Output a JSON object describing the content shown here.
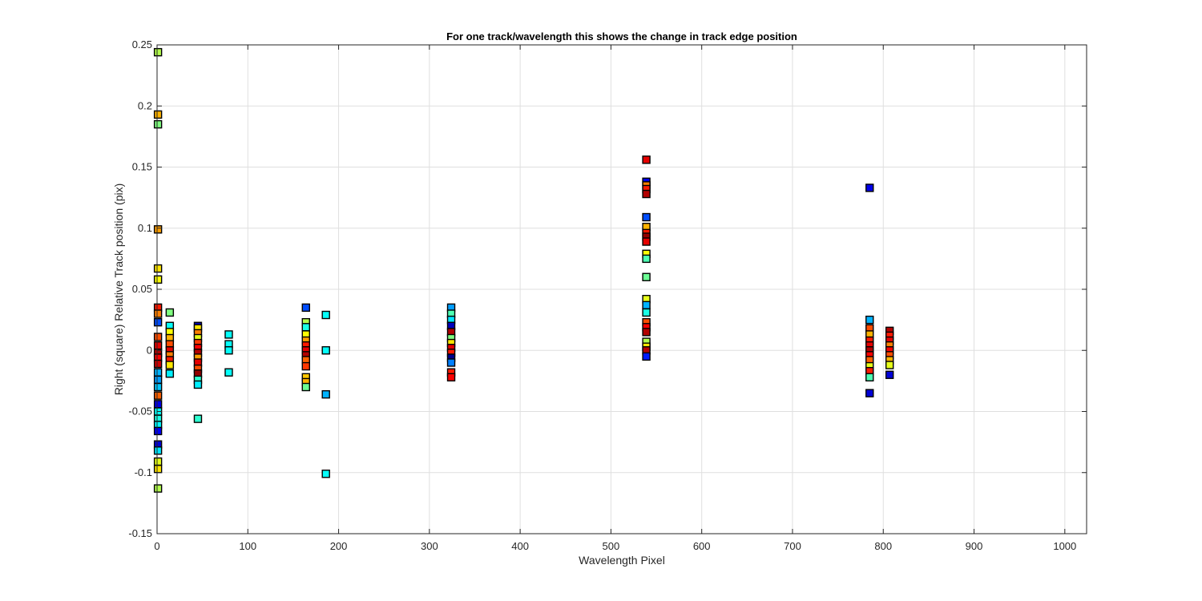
{
  "chart_data": {
    "type": "scatter",
    "title": "For one track/wavelength this shows the change in track edge position",
    "xlabel": "Wavelength Pixel",
    "ylabel": "Right (square) Relative Track position (pix)",
    "xlim": [
      0,
      1024
    ],
    "ylim": [
      -0.15,
      0.25
    ],
    "xticks": [
      0,
      100,
      200,
      300,
      400,
      500,
      600,
      700,
      800,
      900,
      1000
    ],
    "yticks": [
      -0.15,
      -0.1,
      -0.05,
      0,
      0.05,
      0.1,
      0.15,
      0.2,
      0.25
    ],
    "ytick_labels": [
      "-0.15",
      "-0.1",
      "-0.05",
      "0",
      "0.05",
      "0.1",
      "0.15",
      "0.2",
      "0.25"
    ],
    "grid": true,
    "marker": "square",
    "colormap": "jet",
    "colors": {
      "jet": [
        "#00008f",
        "#0000ff",
        "#0080ff",
        "#00ffff",
        "#80ff80",
        "#ffff00",
        "#ff8000",
        "#ff0000",
        "#800000"
      ],
      "axis": "#262626",
      "grid": "#dfdfdf",
      "marker_edge": "#000000"
    },
    "points": [
      {
        "x": 1,
        "y": 0.244,
        "c": 0.55
      },
      {
        "x": 1,
        "y": 0.193,
        "c": 0.7
      },
      {
        "x": 1,
        "y": 0.185,
        "c": 0.5
      },
      {
        "x": 1,
        "y": 0.099,
        "c": 0.72
      },
      {
        "x": 1,
        "y": 0.067,
        "c": 0.65
      },
      {
        "x": 1,
        "y": 0.058,
        "c": 0.62
      },
      {
        "x": 1,
        "y": 0.035,
        "c": 0.85
      },
      {
        "x": 1,
        "y": 0.03,
        "c": 0.75
      },
      {
        "x": 1,
        "y": 0.023,
        "c": 0.2
      },
      {
        "x": 1,
        "y": 0.011,
        "c": 0.8
      },
      {
        "x": 1,
        "y": 0.004,
        "c": 0.9
      },
      {
        "x": 1,
        "y": -0.002,
        "c": 0.95
      },
      {
        "x": 1,
        "y": -0.006,
        "c": 0.88
      },
      {
        "x": 1,
        "y": -0.011,
        "c": 0.92
      },
      {
        "x": 1,
        "y": -0.018,
        "c": 0.3
      },
      {
        "x": 1,
        "y": -0.024,
        "c": 0.28
      },
      {
        "x": 1,
        "y": -0.03,
        "c": 0.32
      },
      {
        "x": 1,
        "y": -0.037,
        "c": 0.78
      },
      {
        "x": 1,
        "y": -0.044,
        "c": 0.1
      },
      {
        "x": 1,
        "y": -0.05,
        "c": 0.38
      },
      {
        "x": 1,
        "y": -0.056,
        "c": 0.4
      },
      {
        "x": 1,
        "y": -0.061,
        "c": 0.37
      },
      {
        "x": 1,
        "y": -0.066,
        "c": 0.12
      },
      {
        "x": 1,
        "y": -0.077,
        "c": 0.08
      },
      {
        "x": 1,
        "y": -0.082,
        "c": 0.35
      },
      {
        "x": 1,
        "y": -0.091,
        "c": 0.6
      },
      {
        "x": 1,
        "y": -0.097,
        "c": 0.65
      },
      {
        "x": 1,
        "y": -0.113,
        "c": 0.55
      },
      {
        "x": 14,
        "y": 0.031,
        "c": 0.5
      },
      {
        "x": 14,
        "y": 0.02,
        "c": 0.38
      },
      {
        "x": 14,
        "y": 0.015,
        "c": 0.62
      },
      {
        "x": 14,
        "y": 0.01,
        "c": 0.7
      },
      {
        "x": 14,
        "y": 0.005,
        "c": 0.8
      },
      {
        "x": 14,
        "y": 0.0,
        "c": 0.9
      },
      {
        "x": 14,
        "y": -0.004,
        "c": 0.75
      },
      {
        "x": 14,
        "y": -0.008,
        "c": 0.85
      },
      {
        "x": 14,
        "y": -0.012,
        "c": 0.65
      },
      {
        "x": 14,
        "y": -0.019,
        "c": 0.36
      },
      {
        "x": 45,
        "y": 0.02,
        "c": 0.05
      },
      {
        "x": 45,
        "y": 0.018,
        "c": 0.65
      },
      {
        "x": 45,
        "y": 0.014,
        "c": 0.75
      },
      {
        "x": 45,
        "y": 0.01,
        "c": 0.6
      },
      {
        "x": 45,
        "y": 0.006,
        "c": 0.82
      },
      {
        "x": 45,
        "y": 0.002,
        "c": 0.88
      },
      {
        "x": 45,
        "y": -0.002,
        "c": 0.95
      },
      {
        "x": 45,
        "y": -0.006,
        "c": 0.72
      },
      {
        "x": 45,
        "y": -0.01,
        "c": 0.9
      },
      {
        "x": 45,
        "y": -0.015,
        "c": 0.8
      },
      {
        "x": 45,
        "y": -0.019,
        "c": 0.98
      },
      {
        "x": 45,
        "y": -0.024,
        "c": 0.42
      },
      {
        "x": 45,
        "y": -0.028,
        "c": 0.36
      },
      {
        "x": 45,
        "y": -0.056,
        "c": 0.42
      },
      {
        "x": 79,
        "y": 0.013,
        "c": 0.38
      },
      {
        "x": 79,
        "y": 0.005,
        "c": 0.38
      },
      {
        "x": 79,
        "y": 0.0,
        "c": 0.38
      },
      {
        "x": 79,
        "y": -0.018,
        "c": 0.38
      },
      {
        "x": 164,
        "y": 0.035,
        "c": 0.2
      },
      {
        "x": 164,
        "y": 0.023,
        "c": 0.55
      },
      {
        "x": 164,
        "y": 0.019,
        "c": 0.4
      },
      {
        "x": 164,
        "y": 0.013,
        "c": 0.62
      },
      {
        "x": 164,
        "y": 0.008,
        "c": 0.72
      },
      {
        "x": 164,
        "y": 0.004,
        "c": 0.85
      },
      {
        "x": 164,
        "y": 0.0,
        "c": 0.9
      },
      {
        "x": 164,
        "y": -0.004,
        "c": 0.95
      },
      {
        "x": 164,
        "y": -0.008,
        "c": 0.78
      },
      {
        "x": 164,
        "y": -0.013,
        "c": 0.82
      },
      {
        "x": 164,
        "y": -0.022,
        "c": 0.68
      },
      {
        "x": 164,
        "y": -0.026,
        "c": 0.7
      },
      {
        "x": 164,
        "y": -0.03,
        "c": 0.48
      },
      {
        "x": 186,
        "y": 0.029,
        "c": 0.38
      },
      {
        "x": 186,
        "y": 0.0,
        "c": 0.38
      },
      {
        "x": 186,
        "y": -0.036,
        "c": 0.3
      },
      {
        "x": 186,
        "y": -0.101,
        "c": 0.38
      },
      {
        "x": 324,
        "y": 0.035,
        "c": 0.28
      },
      {
        "x": 324,
        "y": 0.03,
        "c": 0.45
      },
      {
        "x": 324,
        "y": 0.025,
        "c": 0.35
      },
      {
        "x": 324,
        "y": 0.02,
        "c": 0.05
      },
      {
        "x": 324,
        "y": 0.015,
        "c": 0.95
      },
      {
        "x": 324,
        "y": 0.01,
        "c": 0.5
      },
      {
        "x": 324,
        "y": 0.006,
        "c": 0.65
      },
      {
        "x": 324,
        "y": 0.002,
        "c": 0.9
      },
      {
        "x": 324,
        "y": -0.002,
        "c": 0.85
      },
      {
        "x": 324,
        "y": -0.006,
        "c": 0.0
      },
      {
        "x": 324,
        "y": -0.01,
        "c": 0.25
      },
      {
        "x": 324,
        "y": -0.018,
        "c": 0.85
      },
      {
        "x": 324,
        "y": -0.022,
        "c": 0.88
      },
      {
        "x": 539,
        "y": 0.156,
        "c": 0.9
      },
      {
        "x": 539,
        "y": 0.138,
        "c": 0.1
      },
      {
        "x": 539,
        "y": 0.135,
        "c": 0.75
      },
      {
        "x": 539,
        "y": 0.132,
        "c": 0.85
      },
      {
        "x": 539,
        "y": 0.128,
        "c": 0.95
      },
      {
        "x": 539,
        "y": 0.109,
        "c": 0.2
      },
      {
        "x": 539,
        "y": 0.101,
        "c": 0.7
      },
      {
        "x": 539,
        "y": 0.096,
        "c": 0.85
      },
      {
        "x": 539,
        "y": 0.093,
        "c": 0.98
      },
      {
        "x": 539,
        "y": 0.089,
        "c": 0.9
      },
      {
        "x": 539,
        "y": 0.079,
        "c": 0.62
      },
      {
        "x": 539,
        "y": 0.075,
        "c": 0.45
      },
      {
        "x": 539,
        "y": 0.06,
        "c": 0.48
      },
      {
        "x": 539,
        "y": 0.042,
        "c": 0.6
      },
      {
        "x": 539,
        "y": 0.037,
        "c": 0.3
      },
      {
        "x": 539,
        "y": 0.031,
        "c": 0.4
      },
      {
        "x": 539,
        "y": 0.023,
        "c": 0.8
      },
      {
        "x": 539,
        "y": 0.019,
        "c": 0.88
      },
      {
        "x": 539,
        "y": 0.015,
        "c": 0.95
      },
      {
        "x": 539,
        "y": 0.007,
        "c": 0.55
      },
      {
        "x": 539,
        "y": 0.003,
        "c": 0.65
      },
      {
        "x": 539,
        "y": 0.0,
        "c": 0.95
      },
      {
        "x": 539,
        "y": -0.005,
        "c": 0.15
      },
      {
        "x": 785,
        "y": 0.133,
        "c": 0.1
      },
      {
        "x": 785,
        "y": 0.025,
        "c": 0.3
      },
      {
        "x": 785,
        "y": 0.018,
        "c": 0.8
      },
      {
        "x": 785,
        "y": 0.013,
        "c": 0.7
      },
      {
        "x": 785,
        "y": 0.008,
        "c": 0.85
      },
      {
        "x": 785,
        "y": 0.004,
        "c": 0.9
      },
      {
        "x": 785,
        "y": 0.0,
        "c": 0.95
      },
      {
        "x": 785,
        "y": -0.004,
        "c": 0.88
      },
      {
        "x": 785,
        "y": -0.008,
        "c": 0.78
      },
      {
        "x": 785,
        "y": -0.013,
        "c": 0.6
      },
      {
        "x": 785,
        "y": -0.017,
        "c": 0.85
      },
      {
        "x": 785,
        "y": -0.022,
        "c": 0.45
      },
      {
        "x": 785,
        "y": -0.035,
        "c": 0.08
      },
      {
        "x": 807,
        "y": 0.016,
        "c": 0.95
      },
      {
        "x": 807,
        "y": 0.012,
        "c": 0.85
      },
      {
        "x": 807,
        "y": 0.008,
        "c": 0.9
      },
      {
        "x": 807,
        "y": 0.004,
        "c": 0.75
      },
      {
        "x": 807,
        "y": 0.0,
        "c": 0.88
      },
      {
        "x": 807,
        "y": -0.004,
        "c": 0.8
      },
      {
        "x": 807,
        "y": -0.008,
        "c": 0.7
      },
      {
        "x": 807,
        "y": -0.012,
        "c": 0.6
      },
      {
        "x": 807,
        "y": -0.02,
        "c": 0.08
      }
    ]
  }
}
